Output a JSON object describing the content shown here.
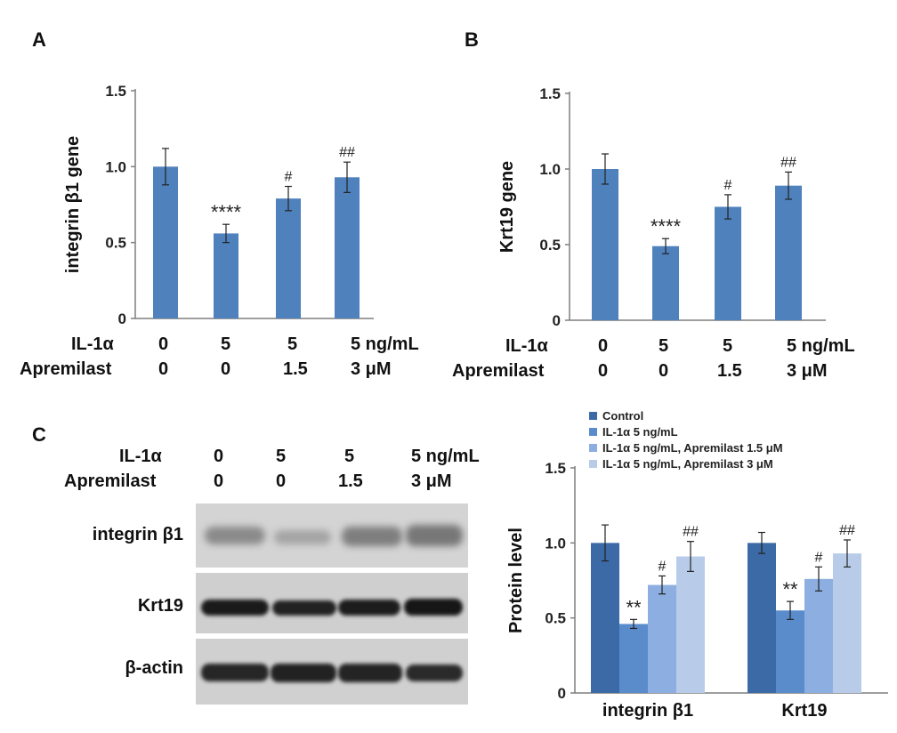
{
  "colors": {
    "bar": "#4f81bd",
    "control": "#3c6aa6",
    "il1a": "#5a8ccc",
    "apr15": "#8daee0",
    "apr3": "#b8cce9",
    "axis": "#7f7f7f"
  },
  "panels": {
    "a": "A",
    "b": "B",
    "c": "C"
  },
  "conditions": {
    "a": {
      "il_label": "IL-1α",
      "apr_label": "Apremilast",
      "il_values": [
        "0",
        "5",
        "5",
        "5 ng/mL"
      ],
      "apr_values": [
        "0",
        "0",
        "1.5",
        "3 μM"
      ]
    },
    "b": {
      "il_label": "IL-1α",
      "apr_label": "Apremilast",
      "il_values": [
        "0",
        "5",
        "5",
        "5 ng/mL"
      ],
      "apr_values": [
        "0",
        "0",
        "1.5",
        "3 μM"
      ]
    },
    "c": {
      "il_label": "IL-1α",
      "apr_label": "Apremilast",
      "il_values": [
        "0",
        "5",
        "5",
        "5 ng/mL"
      ],
      "apr_values": [
        "0",
        "0",
        "1.5",
        "3 μM"
      ]
    }
  },
  "blot": {
    "labels": [
      "integrin β1",
      "Krt19",
      "β-actin"
    ]
  },
  "chart_data": [
    {
      "type": "bar",
      "ylabel": "integrin β1 gene",
      "ylim": [
        0,
        1.5
      ],
      "yticks": [
        "0",
        "0.5",
        "1.0",
        "1.5"
      ],
      "values": [
        1.0,
        0.56,
        0.79,
        0.93
      ],
      "errors": [
        0.12,
        0.06,
        0.08,
        0.1
      ],
      "annotations": [
        "",
        "****",
        "#",
        "##"
      ]
    },
    {
      "type": "bar",
      "ylabel": "Krt19 gene",
      "ylim": [
        0,
        1.5
      ],
      "yticks": [
        "0",
        "0.5",
        "1.0",
        "1.5"
      ],
      "values": [
        1.0,
        0.49,
        0.75,
        0.89
      ],
      "errors": [
        0.1,
        0.05,
        0.08,
        0.09
      ],
      "annotations": [
        "",
        "****",
        "#",
        "##"
      ]
    },
    {
      "type": "bar",
      "ylabel": "Protein level",
      "ylim": [
        0,
        1.5
      ],
      "yticks": [
        "0",
        "0.5",
        "1.0",
        "1.5"
      ],
      "categories": [
        "integrin β1",
        "Krt19"
      ],
      "series": [
        {
          "name": "Control",
          "values": [
            1.0,
            1.0
          ],
          "errors": [
            0.12,
            0.07
          ],
          "annotations": [
            "",
            ""
          ]
        },
        {
          "name": "IL-1α  5 ng/mL",
          "values": [
            0.46,
            0.55
          ],
          "errors": [
            0.03,
            0.06
          ],
          "annotations": [
            "**",
            "**"
          ]
        },
        {
          "name": "IL-1α  5 ng/mL,  Apremilast 1.5 μM",
          "values": [
            0.72,
            0.76
          ],
          "errors": [
            0.06,
            0.08
          ],
          "annotations": [
            "#",
            "#"
          ]
        },
        {
          "name": "IL-1α  5 ng/mL,  Apremilast 3 μM",
          "values": [
            0.91,
            0.93
          ],
          "errors": [
            0.1,
            0.09
          ],
          "annotations": [
            "##",
            "##"
          ]
        }
      ],
      "legend_position": "top"
    }
  ]
}
